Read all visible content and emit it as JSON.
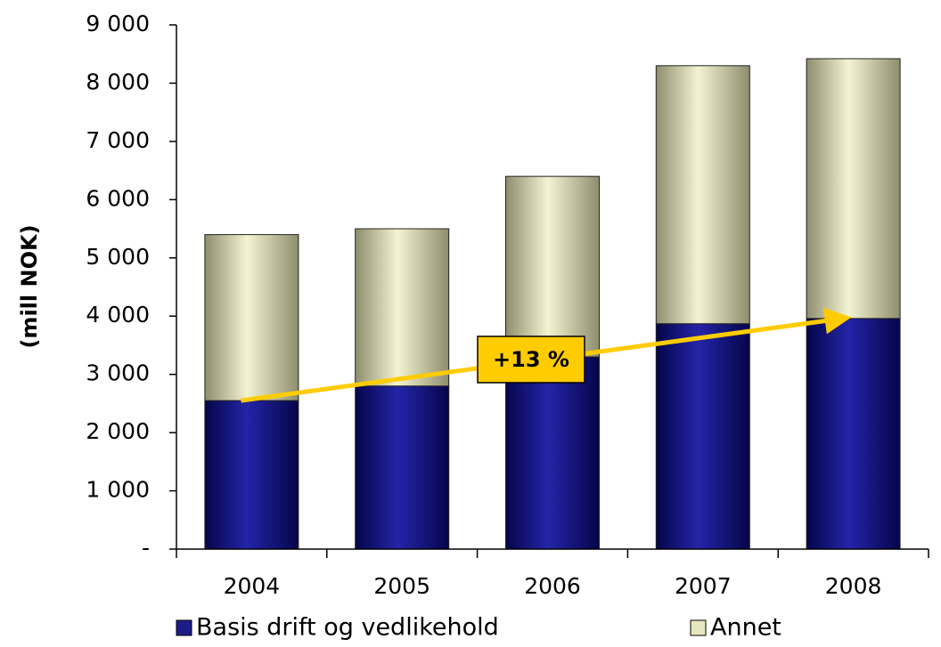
{
  "chart_data": {
    "type": "stacked_bar",
    "y_label": "(mill NOK)",
    "categories": [
      "2004",
      "2005",
      "2006",
      "2007",
      "2008"
    ],
    "series": [
      {
        "name": "Basis drift og vedlikehold",
        "color": "#1c1c8a",
        "values": [
          2550,
          2800,
          3300,
          3870,
          3960
        ]
      },
      {
        "name": "Annet",
        "color": "#e6e6bf",
        "values": [
          2850,
          2700,
          3100,
          4430,
          4460
        ]
      }
    ],
    "ylim": [
      0,
      9000
    ],
    "yticks": [
      {
        "value": 0,
        "label": "-"
      },
      {
        "value": 1000,
        "label": "1 000"
      },
      {
        "value": 2000,
        "label": "2 000"
      },
      {
        "value": 3000,
        "label": "3 000"
      },
      {
        "value": 4000,
        "label": "4 000"
      },
      {
        "value": 5000,
        "label": "5 000"
      },
      {
        "value": 6000,
        "label": "6 000"
      },
      {
        "value": 7000,
        "label": "7 000"
      },
      {
        "value": 8000,
        "label": "8 000"
      },
      {
        "value": 9000,
        "label": "9 000"
      }
    ],
    "annotation": "+13 %",
    "arrow_color": "#ffcc00"
  }
}
